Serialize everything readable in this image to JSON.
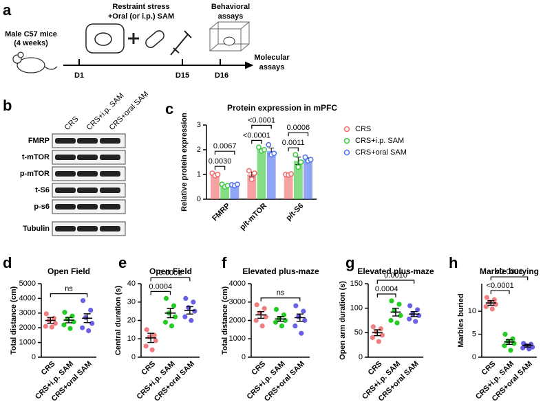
{
  "diagram": {
    "label": "a",
    "subject": [
      "Male C57 mice",
      "(4 weeks)"
    ],
    "treatment": [
      "Restraint stress",
      "+Oral (or i.p.) SAM"
    ],
    "behavior": [
      "Behavioral",
      "assays"
    ],
    "molecular": [
      "Molecular",
      "assays"
    ],
    "days": [
      "D1",
      "D15",
      "D16"
    ]
  },
  "blot": {
    "label": "b",
    "columns": [
      "CRS",
      "CRS+i.p. SAM",
      "CRS+oral SAM"
    ],
    "rows": [
      "FMRP",
      "t-mTOR",
      "p-mTOR",
      "t-S6",
      "p-s6",
      "Tubulin"
    ]
  },
  "chart_data": [
    {
      "type": "bar",
      "label": "c",
      "title": "Protein expression in mPFC",
      "y_label": "Relative protein expression",
      "categories": [
        "FMRP",
        "p/t-mTOR",
        "p/t-S6"
      ],
      "ylim": [
        0,
        3
      ],
      "yticks": [
        0,
        1,
        2,
        3
      ],
      "legend": "right",
      "series": [
        {
          "name": "CRS",
          "color": "#f07070",
          "values": [
            1.0,
            1.0,
            1.0
          ],
          "errors": [
            0.03,
            0.1,
            0.02
          ],
          "points": [
            [
              1.05,
              0.95,
              1.0
            ],
            [
              1.15,
              0.8,
              1.05
            ],
            [
              1.0,
              0.98,
              1.02
            ]
          ]
        },
        {
          "name": "CRS+i.p. SAM",
          "color": "#44cc44",
          "values": [
            0.55,
            2.0,
            1.55
          ],
          "errors": [
            0.03,
            0.05,
            0.15
          ],
          "points": [
            [
              0.6,
              0.5,
              0.55
            ],
            [
              2.1,
              1.95,
              2.0
            ],
            [
              1.8,
              1.3,
              1.5
            ]
          ]
        },
        {
          "name": "CRS+oral SAM",
          "color": "#5577ee",
          "values": [
            0.57,
            1.95,
            1.62
          ],
          "errors": [
            0.02,
            0.12,
            0.05
          ],
          "points": [
            [
              0.58,
              0.55,
              0.6
            ],
            [
              2.2,
              1.8,
              1.85
            ],
            [
              1.7,
              1.55,
              1.6
            ]
          ]
        }
      ],
      "brackets": [
        {
          "category": 0,
          "from": 0,
          "to": 1,
          "label": "0.0030"
        },
        {
          "category": 0,
          "from": 0,
          "to": 2,
          "label": "0.0067"
        },
        {
          "category": 1,
          "from": 0,
          "to": 1,
          "label": "<0.0001"
        },
        {
          "category": 1,
          "from": 0,
          "to": 2,
          "label": "<0.0001"
        },
        {
          "category": 2,
          "from": 0,
          "to": 1,
          "label": "0.0011"
        },
        {
          "category": 2,
          "from": 0,
          "to": 2,
          "label": "0.0006"
        }
      ]
    },
    {
      "type": "dot",
      "label": "d",
      "title": "Open Field",
      "y_label": "Total distance (cm)",
      "categories": [
        "CRS",
        "CRS+i.p. SAM",
        "CRS+oral SAM"
      ],
      "colors": [
        "#f07e80",
        "#22cc22",
        "#6a60e6"
      ],
      "ylim": [
        0,
        5000
      ],
      "yticks": [
        0,
        1000,
        2000,
        3000,
        4000,
        5000
      ],
      "groups": [
        {
          "values": [
            2950,
            2650,
            2500,
            2300,
            2100,
            2050
          ],
          "mean": 2500,
          "sem": 200
        },
        {
          "values": [
            3050,
            2800,
            2600,
            2400,
            2200,
            1950
          ],
          "mean": 2520,
          "sem": 180
        },
        {
          "values": [
            3850,
            3200,
            2700,
            2300,
            2000,
            1800
          ],
          "mean": 2650,
          "sem": 300
        }
      ],
      "brackets": [
        {
          "from": 0,
          "to": 2,
          "label": "ns"
        }
      ]
    },
    {
      "type": "dot",
      "label": "e",
      "title": "Open Field",
      "y_label": "Central duration (s)",
      "categories": [
        "CRS",
        "CRS+i.p. SAM",
        "CRS+oral SAM"
      ],
      "colors": [
        "#f07e80",
        "#22cc22",
        "#6a60e6"
      ],
      "ylim": [
        0,
        40
      ],
      "yticks": [
        0,
        10,
        20,
        30,
        40
      ],
      "groups": [
        {
          "values": [
            15,
            12,
            11,
            9,
            6,
            4
          ],
          "mean": 10.5,
          "sem": 2.5
        },
        {
          "values": [
            32,
            28,
            24,
            22,
            19,
            17
          ],
          "mean": 24,
          "sem": 2.5
        },
        {
          "values": [
            32,
            30,
            27,
            25,
            22,
            20
          ],
          "mean": 25.5,
          "sem": 2
        }
      ],
      "brackets": [
        {
          "from": 0,
          "to": 1,
          "label": "0.0004"
        },
        {
          "from": 0,
          "to": 2,
          "label": "0.0001"
        }
      ]
    },
    {
      "type": "dot",
      "label": "f",
      "title": "Elevated plus-maze",
      "y_label": "Total distance (cm)",
      "categories": [
        "CRS",
        "CRS+i.p. SAM",
        "CRS+oral SAM"
      ],
      "colors": [
        "#f07e80",
        "#22cc22",
        "#6a60e6"
      ],
      "ylim": [
        0,
        4000
      ],
      "yticks": [
        0,
        1000,
        2000,
        3000,
        4000
      ],
      "groups": [
        {
          "values": [
            2850,
            2650,
            2400,
            2200,
            2000,
            1700
          ],
          "mean": 2300,
          "sem": 180
        },
        {
          "values": [
            2600,
            2300,
            2100,
            2000,
            1900,
            1700
          ],
          "mean": 2080,
          "sem": 130
        },
        {
          "values": [
            2800,
            2500,
            2200,
            2000,
            1700,
            1300
          ],
          "mean": 2150,
          "sem": 200
        }
      ],
      "brackets": [
        {
          "from": 0,
          "to": 2,
          "label": "ns"
        }
      ]
    },
    {
      "type": "dot",
      "label": "g",
      "title": "Elevated plus-maze",
      "y_label": "Open arm duration (s)",
      "categories": [
        "CRS",
        "CRS+i.p. SAM",
        "CRS+oral SAM"
      ],
      "colors": [
        "#f07e80",
        "#22cc22",
        "#6a60e6"
      ],
      "ylim": [
        0,
        150
      ],
      "yticks": [
        0,
        50,
        100,
        150
      ],
      "groups": [
        {
          "values": [
            62,
            58,
            52,
            45,
            40,
            32
          ],
          "mean": 50,
          "sem": 6
        },
        {
          "values": [
            115,
            108,
            95,
            85,
            75,
            70
          ],
          "mean": 92,
          "sem": 8
        },
        {
          "values": [
            105,
            97,
            88,
            85,
            78,
            73
          ],
          "mean": 88,
          "sem": 5
        }
      ],
      "brackets": [
        {
          "from": 0,
          "to": 1,
          "label": "0.0004"
        },
        {
          "from": 0,
          "to": 2,
          "label": "0.0010"
        }
      ]
    },
    {
      "type": "dot",
      "label": "h",
      "title": "Marble burying",
      "y_label": "Marbles buried",
      "categories": [
        "CRS",
        "CRS+i.p. SAM",
        "CRS+oral SAM"
      ],
      "colors": [
        "#f07e80",
        "#22cc22",
        "#6a60e6"
      ],
      "ylim": [
        0,
        16
      ],
      "yticks": [
        0,
        5,
        10
      ],
      "groups": [
        {
          "values": [
            13,
            12.5,
            12,
            11.5,
            11,
            10.5
          ],
          "mean": 11.8,
          "sem": 0.5
        },
        {
          "values": [
            5,
            4,
            3.5,
            3,
            2.5,
            1.5
          ],
          "mean": 3.3,
          "sem": 0.5
        },
        {
          "values": [
            3,
            2.8,
            2.5,
            2.2,
            2,
            1.8
          ],
          "mean": 2.5,
          "sem": 0.3
        }
      ],
      "brackets": [
        {
          "from": 0,
          "to": 1,
          "label": "<0.0001"
        },
        {
          "from": 0,
          "to": 2,
          "label": "<0.0001"
        }
      ]
    }
  ]
}
